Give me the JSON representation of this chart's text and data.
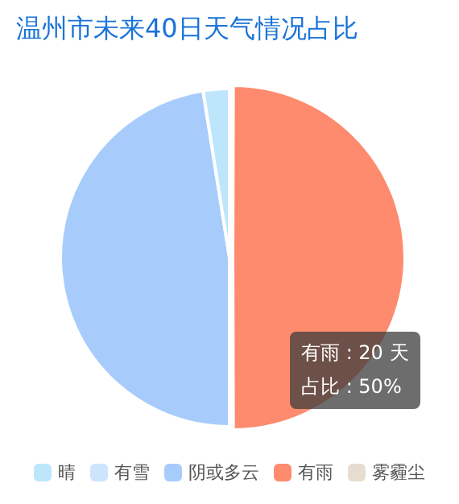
{
  "chart_data": {
    "type": "pie",
    "title": "温州市未来40日天气情况占比",
    "categories": [
      "晴",
      "有雪",
      "阴或多云",
      "有雨",
      "雾霾尘"
    ],
    "values": [
      2.5,
      0,
      47.5,
      50,
      0
    ],
    "colors": [
      "#bde6fd",
      "#cce4fc",
      "#a7ccfb",
      "#fe8b6e",
      "#e6dccf"
    ],
    "legend": "bottom",
    "annotations": [
      "有雨 : 20 天",
      "占比 : 50%"
    ]
  }
}
